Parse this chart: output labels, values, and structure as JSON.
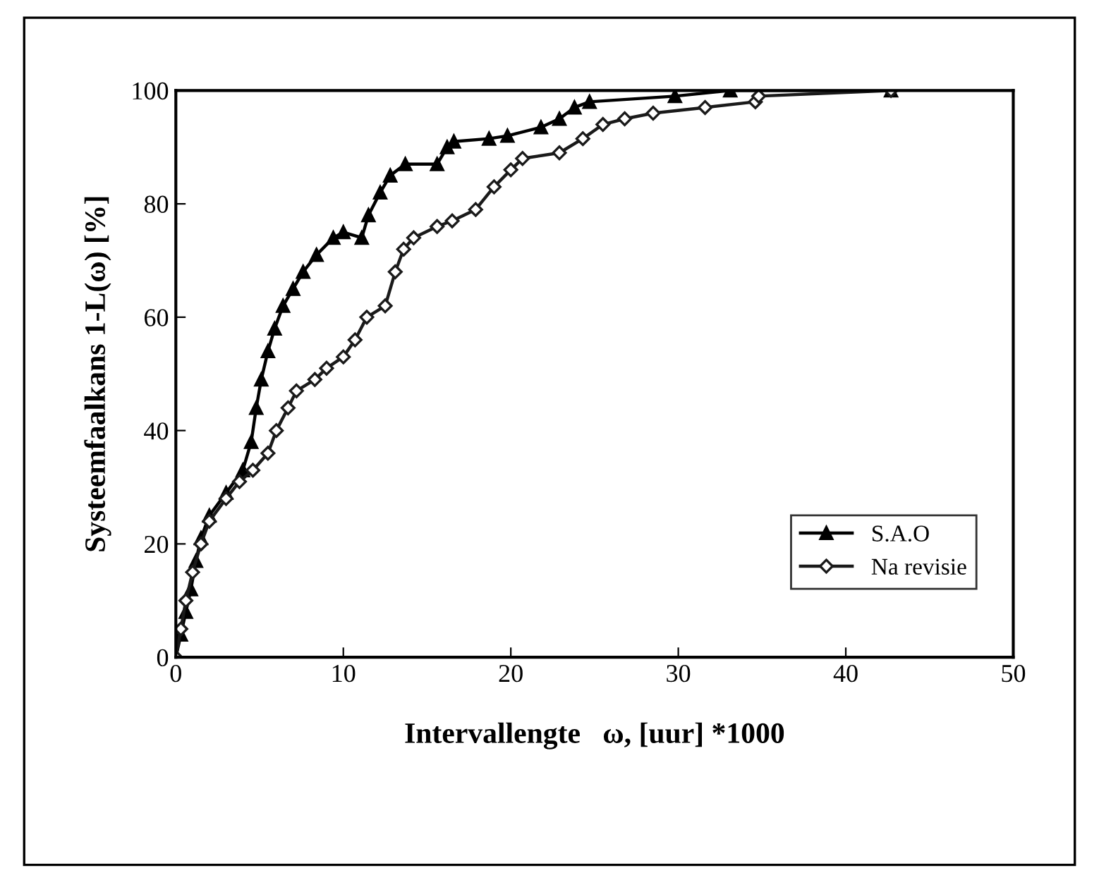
{
  "chart_data": {
    "type": "line",
    "xlabel": "Intervallengte   ω, [uur] *1000",
    "ylabel": "Systeemfaalkans 1-L(ω) [%]",
    "xlim": [
      0,
      50
    ],
    "xticks": [
      0,
      10,
      20,
      30,
      40,
      50
    ],
    "ylim": [
      0,
      100
    ],
    "yticks": [
      0,
      20,
      40,
      60,
      80,
      100
    ],
    "grid": false,
    "legend": "bottom right",
    "line_style": "solid",
    "series": [
      {
        "name": "S.A.O",
        "color": "#000000",
        "marker": "triangle",
        "x": [
          0,
          0.3,
          0.6,
          0.9,
          1.2,
          1.5,
          2,
          3,
          4,
          4.5,
          4.8,
          5.1,
          5.5,
          5.9,
          6.4,
          7,
          7.6,
          8.4,
          9.4,
          10,
          11.1,
          11.5,
          12.2,
          12.8,
          13.7,
          15.6,
          16.2,
          16.6,
          18.7,
          19.8,
          21.8,
          22.9,
          23.8,
          24.7,
          29.8,
          33.1,
          42.7
        ],
        "values": [
          0,
          4,
          8,
          12,
          17,
          21,
          25,
          29,
          33,
          38,
          44,
          49,
          54,
          58,
          62,
          65,
          68,
          71,
          74,
          75,
          74,
          78,
          82,
          85,
          87,
          87,
          90,
          91,
          91.5,
          92,
          93.5,
          95,
          97,
          98,
          99,
          100,
          100
        ]
      },
      {
        "name": "Na revisie",
        "color": "#1a1a1a",
        "marker": "diamond",
        "x": [
          0,
          0.3,
          0.6,
          1,
          1.5,
          2,
          3,
          3.8,
          4.6,
          5.5,
          6,
          6.7,
          7.2,
          8.3,
          9,
          10,
          10.7,
          11.4,
          12.5,
          13.1,
          13.6,
          14.2,
          15.6,
          16.5,
          17.9,
          19,
          20,
          20.7,
          22.9,
          24.3,
          25.5,
          26.8,
          28.5,
          31.6,
          34.6,
          34.8,
          42.7
        ],
        "values": [
          0,
          5,
          10,
          15,
          20,
          24,
          28,
          31,
          33,
          36,
          40,
          44,
          47,
          49,
          51,
          53,
          56,
          60,
          62,
          68,
          72,
          74,
          76,
          77,
          79,
          83,
          86,
          88,
          89,
          91.5,
          94,
          95,
          96,
          97,
          98,
          99,
          100
        ]
      }
    ]
  }
}
